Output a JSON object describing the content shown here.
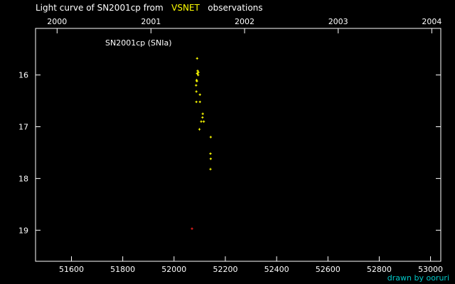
{
  "title": {
    "prefix": "Light curve of SN2001cp from",
    "highlight": "VSNET",
    "suffix": "observations"
  },
  "credit": "drawn by ooruri",
  "chart_data": {
    "type": "scatter",
    "annotation": "SN2001cp (SNIa)",
    "x_axis_bottom": {
      "ticks": [
        51600,
        51800,
        52000,
        52200,
        52400,
        52600,
        52800,
        53000
      ],
      "range": [
        51460,
        53040
      ]
    },
    "x_axis_top": {
      "ticks": [
        "2000",
        "2001",
        "2002",
        "2003",
        "2004"
      ],
      "tick_jd": [
        51544,
        51910,
        52275,
        52640,
        53005
      ]
    },
    "y_axis": {
      "ticks": [
        16,
        17,
        18,
        19
      ],
      "range": [
        15.1,
        19.6
      ],
      "inverted": true
    },
    "grid": false,
    "colors": {
      "points": "#ffff00",
      "upper_limit": "#ff2020",
      "axes": "#ffffff"
    },
    "series": [
      {
        "points": [
          [
            52090,
            15.68
          ],
          [
            52092,
            15.92
          ],
          [
            52095,
            15.95
          ],
          [
            52090,
            15.97
          ],
          [
            52094,
            16.0
          ],
          [
            52088,
            16.1
          ],
          [
            52089,
            16.12
          ],
          [
            52086,
            16.2
          ],
          [
            52087,
            16.32
          ],
          [
            52101,
            16.38
          ],
          [
            52087,
            16.52
          ],
          [
            52101,
            16.52
          ],
          [
            52112,
            16.75
          ],
          [
            52111,
            16.82
          ],
          [
            52106,
            16.9
          ],
          [
            52116,
            16.9
          ],
          [
            52099,
            17.05
          ],
          [
            52143,
            17.2
          ],
          [
            52142,
            17.52
          ],
          [
            52143,
            17.62
          ],
          [
            52142,
            17.82
          ]
        ]
      },
      {
        "points": [
          [
            52070,
            18.97
          ]
        ]
      }
    ]
  }
}
